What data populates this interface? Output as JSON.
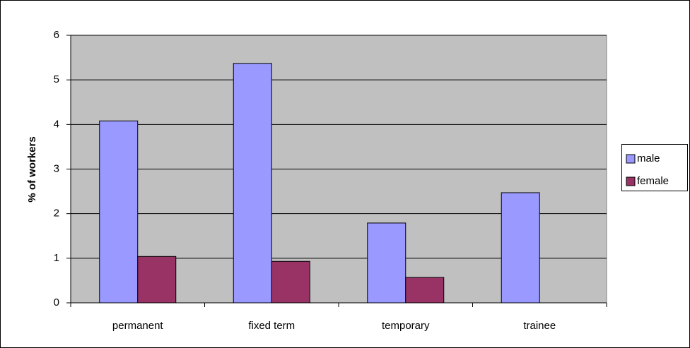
{
  "chart_data": {
    "type": "bar",
    "y_label": "% of workers",
    "categories": [
      "permanent",
      "fixed term",
      "temporary",
      "trainee"
    ],
    "series": [
      {
        "name": "male",
        "color": "#9999ff",
        "values": [
          4.08,
          5.37,
          1.79,
          2.47
        ]
      },
      {
        "name": "female",
        "color": "#993366",
        "values": [
          1.04,
          0.93,
          0.57,
          null
        ]
      }
    ],
    "ylim": [
      0,
      6
    ],
    "yticks": [
      0,
      1,
      2,
      3,
      4,
      5,
      6
    ],
    "grid": true,
    "legend": "right"
  }
}
